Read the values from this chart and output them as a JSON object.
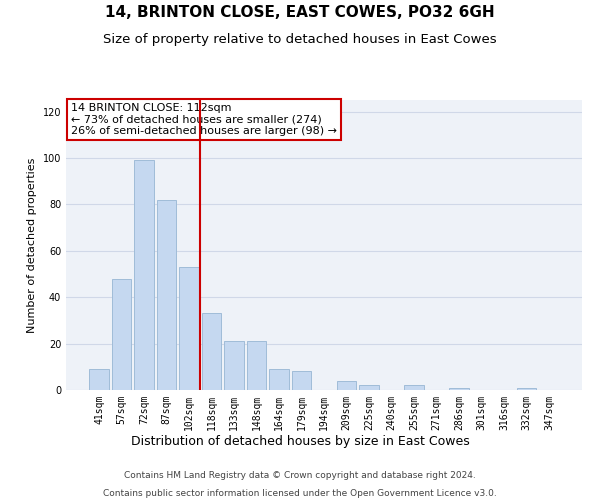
{
  "title": "14, BRINTON CLOSE, EAST COWES, PO32 6GH",
  "subtitle": "Size of property relative to detached houses in East Cowes",
  "xlabel": "Distribution of detached houses by size in East Cowes",
  "ylabel": "Number of detached properties",
  "categories": [
    "41sqm",
    "57sqm",
    "72sqm",
    "87sqm",
    "102sqm",
    "118sqm",
    "133sqm",
    "148sqm",
    "164sqm",
    "179sqm",
    "194sqm",
    "209sqm",
    "225sqm",
    "240sqm",
    "255sqm",
    "271sqm",
    "286sqm",
    "301sqm",
    "316sqm",
    "332sqm",
    "347sqm"
  ],
  "values": [
    9,
    48,
    99,
    82,
    53,
    33,
    21,
    21,
    9,
    8,
    0,
    4,
    2,
    0,
    2,
    0,
    1,
    0,
    0,
    1,
    0
  ],
  "bar_color": "#c5d8f0",
  "bar_edge_color": "#a0bcd8",
  "vline_x": 4.5,
  "vline_color": "#cc0000",
  "vline_linewidth": 1.5,
  "annotation_text": "14 BRINTON CLOSE: 112sqm\n← 73% of detached houses are smaller (274)\n26% of semi-detached houses are larger (98) →",
  "annotation_box_color": "#ffffff",
  "annotation_box_edge": "#cc0000",
  "ylim": [
    0,
    125
  ],
  "yticks": [
    0,
    20,
    40,
    60,
    80,
    100,
    120
  ],
  "grid_color": "#d0d8e8",
  "bg_color": "#eef2f8",
  "footer1": "Contains HM Land Registry data © Crown copyright and database right 2024.",
  "footer2": "Contains public sector information licensed under the Open Government Licence v3.0.",
  "title_fontsize": 11,
  "subtitle_fontsize": 9.5,
  "xlabel_fontsize": 9,
  "ylabel_fontsize": 8,
  "tick_fontsize": 7,
  "annotation_fontsize": 8,
  "footer_fontsize": 6.5
}
